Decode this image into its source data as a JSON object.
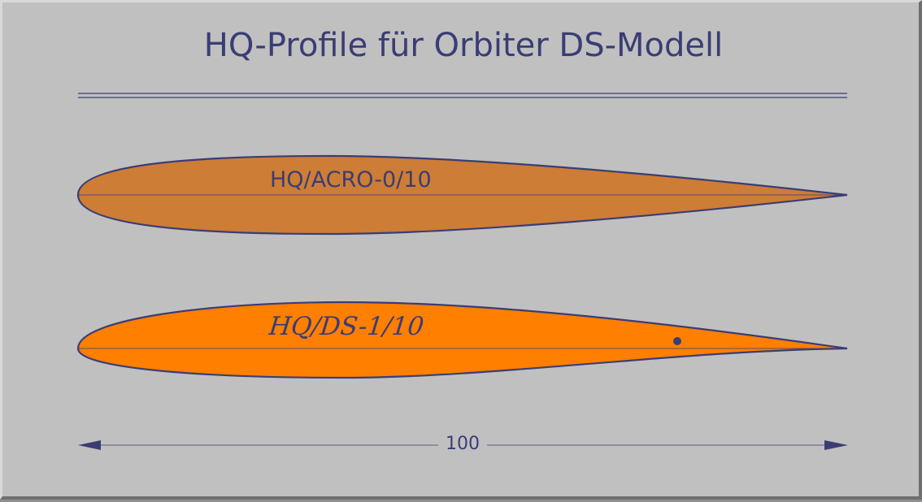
{
  "title": "HQ-Profile für Orbiter DS-Modell",
  "profiles": [
    {
      "label": "HQ/ACRO-0/10",
      "fill_color": "#cd7d35"
    },
    {
      "label": "HQ/DS-1/10",
      "fill_color": "#ff7f00"
    }
  ],
  "dimension": {
    "value": "100"
  },
  "colors": {
    "background": "#c0c0c0",
    "ink": "#3a3d75"
  }
}
